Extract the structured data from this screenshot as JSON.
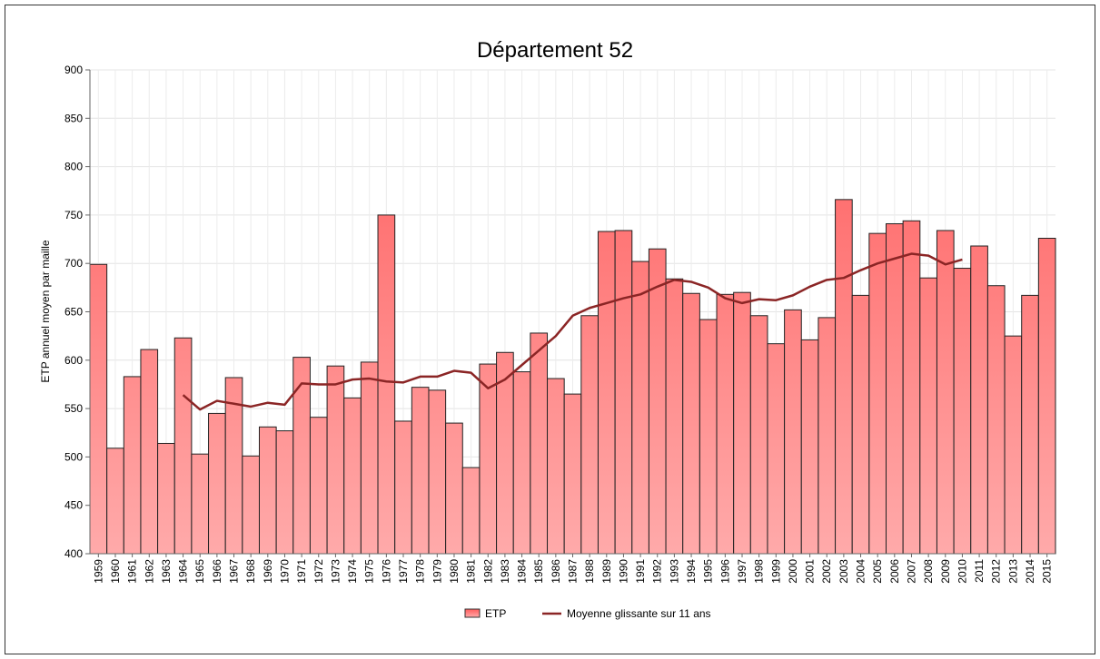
{
  "chart_data": {
    "type": "bar",
    "title": "Département 52",
    "y_label": "ETP annuel moyen par maille",
    "categories": [
      "1959",
      "1960",
      "1961",
      "1962",
      "1963",
      "1964",
      "1965",
      "1966",
      "1967",
      "1968",
      "1969",
      "1970",
      "1971",
      "1972",
      "1973",
      "1974",
      "1975",
      "1976",
      "1977",
      "1978",
      "1979",
      "1980",
      "1981",
      "1982",
      "1983",
      "1984",
      "1985",
      "1986",
      "1987",
      "1988",
      "1989",
      "1990",
      "1991",
      "1992",
      "1993",
      "1994",
      "1995",
      "1996",
      "1997",
      "1998",
      "1999",
      "2000",
      "2001",
      "2002",
      "2003",
      "2004",
      "2005",
      "2006",
      "2007",
      "2008",
      "2009",
      "2010",
      "2011",
      "2012",
      "2013",
      "2014",
      "2015"
    ],
    "series": [
      {
        "name": "ETP",
        "type": "bar",
        "color": "#ff5c5c",
        "values": [
          699,
          509,
          583,
          611,
          514,
          623,
          503,
          545,
          582,
          501,
          531,
          527,
          603,
          541,
          594,
          561,
          598,
          750,
          537,
          572,
          569,
          535,
          489,
          596,
          608,
          588,
          628,
          581,
          565,
          646,
          733,
          734,
          702,
          715,
          684,
          669,
          642,
          668,
          670,
          646,
          617,
          652,
          621,
          644,
          766,
          667,
          731,
          741,
          744,
          685,
          734,
          695,
          718,
          677,
          625,
          667,
          726
        ]
      },
      {
        "name": "Moyenne glissante sur 11 ans",
        "type": "line",
        "color": "#8b2525",
        "values": [
          null,
          null,
          null,
          null,
          null,
          564,
          549,
          558,
          555,
          552,
          556,
          554,
          576,
          575,
          575,
          580,
          581,
          578,
          577,
          583,
          583,
          589,
          587,
          571,
          580,
          595,
          610,
          625,
          646,
          654,
          659,
          664,
          668,
          676,
          683,
          681,
          675,
          664,
          659,
          663,
          662,
          667,
          676,
          683,
          685,
          693,
          700,
          705,
          710,
          708,
          699,
          704,
          null,
          null,
          null,
          null,
          null
        ]
      }
    ],
    "ylim": [
      400,
      900
    ],
    "yticks": [
      400,
      450,
      500,
      550,
      600,
      650,
      700,
      750,
      800,
      850,
      900
    ],
    "grid": true,
    "legend": "bottom"
  }
}
